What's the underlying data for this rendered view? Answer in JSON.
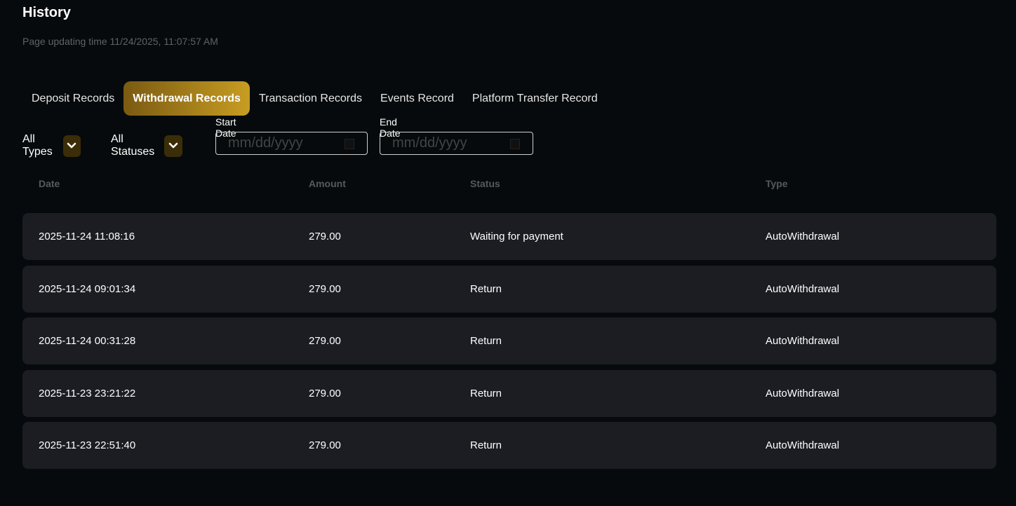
{
  "header": {
    "title": "History",
    "updated": "Page updating time 11/24/2025, 11:07:57 AM"
  },
  "tabs": [
    {
      "label": "Deposit Records",
      "active": false
    },
    {
      "label": "Withdrawal Records",
      "active": true
    },
    {
      "label": "Transaction Records",
      "active": false
    },
    {
      "label": "Events Record",
      "active": false
    },
    {
      "label": "Platform Transfer Record",
      "active": false
    }
  ],
  "filters": {
    "type": "All Types",
    "status": "All Statuses",
    "start_label": "Start Date",
    "end_label": "End Date",
    "start_placeholder": "mm/dd/yyyy",
    "end_placeholder": "mm/dd/yyyy",
    "accent": "#c89d22"
  },
  "table": {
    "columns": [
      "Date",
      "Amount",
      "Status",
      "Type"
    ],
    "rows": [
      [
        "2025-11-24 11:08:16",
        "279.00",
        "Waiting for payment",
        "AutoWithdrawal"
      ],
      [
        "2025-11-24 09:01:34",
        "279.00",
        "Return",
        "AutoWithdrawal"
      ],
      [
        "2025-11-24 00:31:28",
        "279.00",
        "Return",
        "AutoWithdrawal"
      ],
      [
        "2025-11-23 23:21:22",
        "279.00",
        "Return",
        "AutoWithdrawal"
      ],
      [
        "2025-11-23 22:51:40",
        "279.00",
        "Return",
        "AutoWithdrawal"
      ]
    ]
  }
}
